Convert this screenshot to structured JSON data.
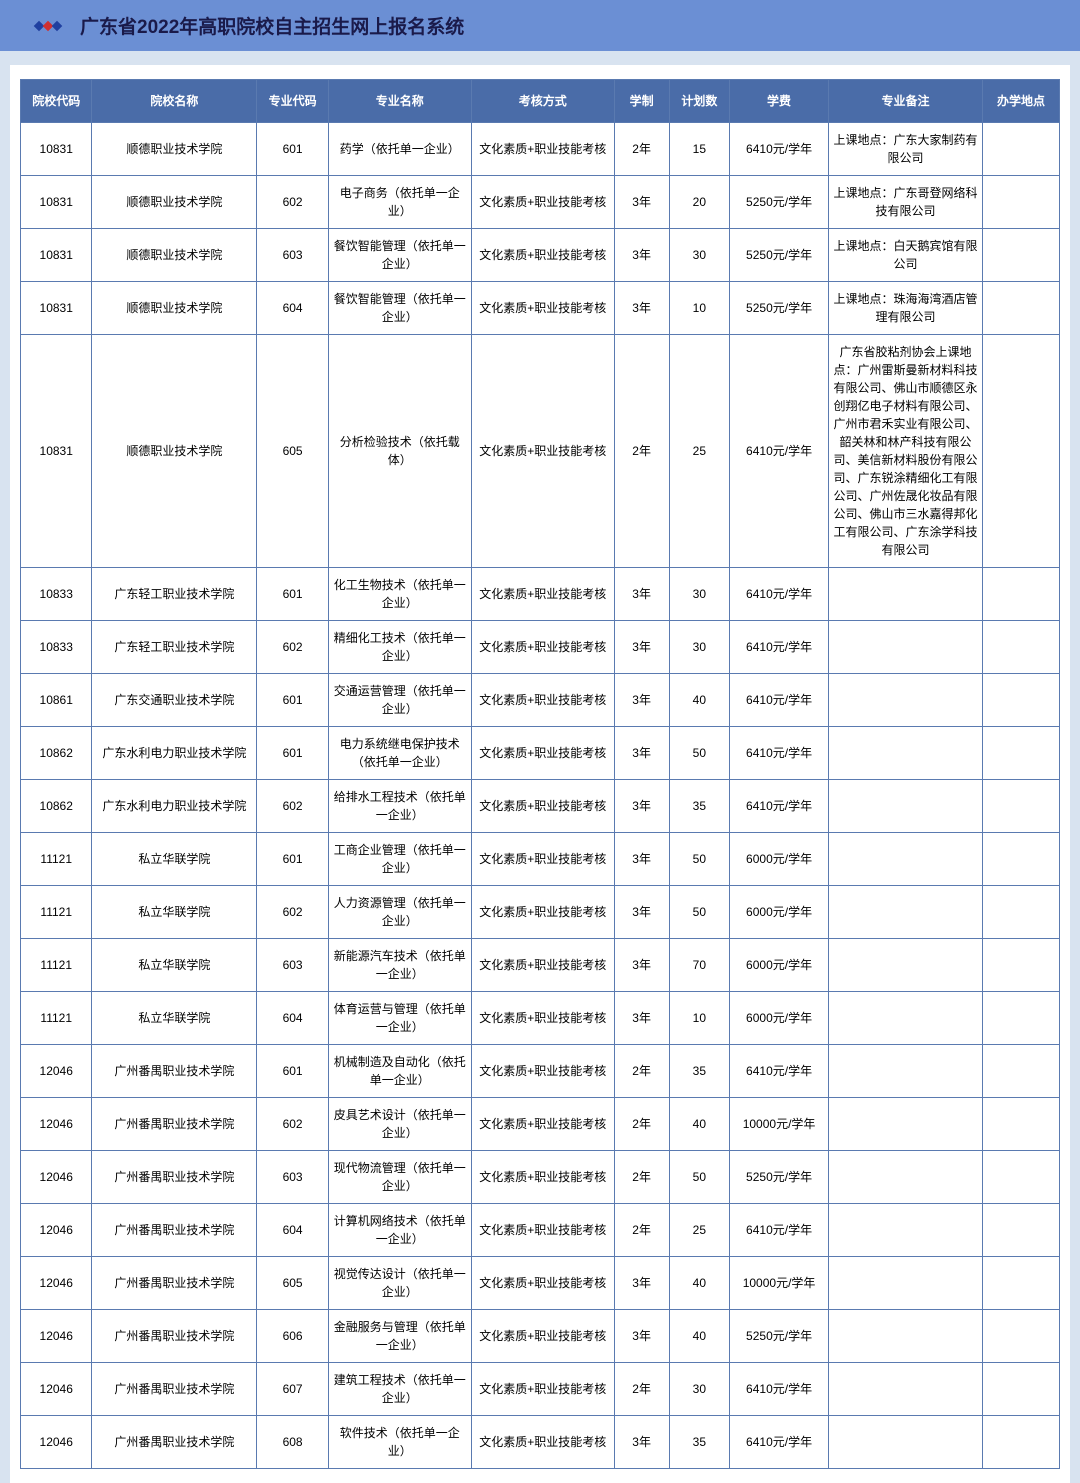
{
  "header": {
    "title": "广东省2022年高职院校自主招生网上报名系统"
  },
  "table": {
    "columns": [
      "院校代码",
      "院校名称",
      "专业代码",
      "专业名称",
      "考核方式",
      "学制",
      "计划数",
      "学费",
      "专业备注",
      "办学地点"
    ],
    "rows": [
      [
        "10831",
        "顺德职业技术学院",
        "601",
        "药学（依托单一企业）",
        "文化素质+职业技能考核",
        "2年",
        "15",
        "6410元/学年",
        "上课地点：广东大家制药有限公司",
        ""
      ],
      [
        "10831",
        "顺德职业技术学院",
        "602",
        "电子商务（依托单一企业）",
        "文化素质+职业技能考核",
        "3年",
        "20",
        "5250元/学年",
        "上课地点：广东哥登网络科技有限公司",
        ""
      ],
      [
        "10831",
        "顺德职业技术学院",
        "603",
        "餐饮智能管理（依托单一企业）",
        "文化素质+职业技能考核",
        "3年",
        "30",
        "5250元/学年",
        "上课地点：白天鹅宾馆有限公司",
        ""
      ],
      [
        "10831",
        "顺德职业技术学院",
        "604",
        "餐饮智能管理（依托单一企业）",
        "文化素质+职业技能考核",
        "3年",
        "10",
        "5250元/学年",
        "上课地点：珠海海湾酒店管理有限公司",
        ""
      ],
      [
        "10831",
        "顺德职业技术学院",
        "605",
        "分析检验技术（依托载体）",
        "文化素质+职业技能考核",
        "2年",
        "25",
        "6410元/学年",
        "广东省胶粘剂协会上课地点：广州雷斯曼新材料科技有限公司、佛山市顺德区永创翔亿电子材料有限公司、广州市君禾实业有限公司、韶关林和林产科技有限公司、美信新材料股份有限公司、广东锐涂精细化工有限公司、广州佐晟化妆品有限公司、佛山市三水嘉得邦化工有限公司、广东涂学科技有限公司",
        ""
      ],
      [
        "10833",
        "广东轻工职业技术学院",
        "601",
        "化工生物技术（依托单一企业）",
        "文化素质+职业技能考核",
        "3年",
        "30",
        "6410元/学年",
        "",
        ""
      ],
      [
        "10833",
        "广东轻工职业技术学院",
        "602",
        "精细化工技术（依托单一企业）",
        "文化素质+职业技能考核",
        "3年",
        "30",
        "6410元/学年",
        "",
        ""
      ],
      [
        "10861",
        "广东交通职业技术学院",
        "601",
        "交通运营管理（依托单一企业）",
        "文化素质+职业技能考核",
        "3年",
        "40",
        "6410元/学年",
        "",
        ""
      ],
      [
        "10862",
        "广东水利电力职业技术学院",
        "601",
        "电力系统继电保护技术（依托单一企业）",
        "文化素质+职业技能考核",
        "3年",
        "50",
        "6410元/学年",
        "",
        ""
      ],
      [
        "10862",
        "广东水利电力职业技术学院",
        "602",
        "给排水工程技术（依托单一企业）",
        "文化素质+职业技能考核",
        "3年",
        "35",
        "6410元/学年",
        "",
        ""
      ],
      [
        "11121",
        "私立华联学院",
        "601",
        "工商企业管理（依托单一企业）",
        "文化素质+职业技能考核",
        "3年",
        "50",
        "6000元/学年",
        "",
        ""
      ],
      [
        "11121",
        "私立华联学院",
        "602",
        "人力资源管理（依托单一企业）",
        "文化素质+职业技能考核",
        "3年",
        "50",
        "6000元/学年",
        "",
        ""
      ],
      [
        "11121",
        "私立华联学院",
        "603",
        "新能源汽车技术（依托单一企业）",
        "文化素质+职业技能考核",
        "3年",
        "70",
        "6000元/学年",
        "",
        ""
      ],
      [
        "11121",
        "私立华联学院",
        "604",
        "体育运营与管理（依托单一企业）",
        "文化素质+职业技能考核",
        "3年",
        "10",
        "6000元/学年",
        "",
        ""
      ],
      [
        "12046",
        "广州番禺职业技术学院",
        "601",
        "机械制造及自动化（依托单一企业）",
        "文化素质+职业技能考核",
        "2年",
        "35",
        "6410元/学年",
        "",
        ""
      ],
      [
        "12046",
        "广州番禺职业技术学院",
        "602",
        "皮具艺术设计（依托单一企业）",
        "文化素质+职业技能考核",
        "2年",
        "40",
        "10000元/学年",
        "",
        ""
      ],
      [
        "12046",
        "广州番禺职业技术学院",
        "603",
        "现代物流管理（依托单一企业）",
        "文化素质+职业技能考核",
        "2年",
        "50",
        "5250元/学年",
        "",
        ""
      ],
      [
        "12046",
        "广州番禺职业技术学院",
        "604",
        "计算机网络技术（依托单一企业）",
        "文化素质+职业技能考核",
        "2年",
        "25",
        "6410元/学年",
        "",
        ""
      ],
      [
        "12046",
        "广州番禺职业技术学院",
        "605",
        "视觉传达设计（依托单一企业）",
        "文化素质+职业技能考核",
        "3年",
        "40",
        "10000元/学年",
        "",
        ""
      ],
      [
        "12046",
        "广州番禺职业技术学院",
        "606",
        "金融服务与管理（依托单一企业）",
        "文化素质+职业技能考核",
        "3年",
        "40",
        "5250元/学年",
        "",
        ""
      ],
      [
        "12046",
        "广州番禺职业技术学院",
        "607",
        "建筑工程技术（依托单一企业）",
        "文化素质+职业技能考核",
        "2年",
        "30",
        "6410元/学年",
        "",
        ""
      ],
      [
        "12046",
        "广州番禺职业技术学院",
        "608",
        "软件技术（依托单一企业）",
        "文化素质+职业技能考核",
        "3年",
        "35",
        "6410元/学年",
        "",
        ""
      ]
    ]
  }
}
